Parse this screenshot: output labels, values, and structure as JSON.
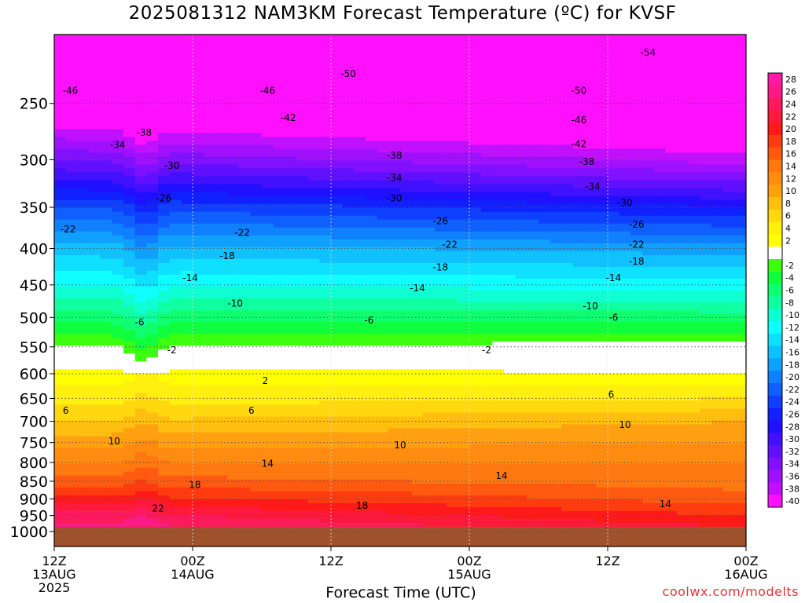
{
  "title": "2025081312 NAM3KM Forecast Temperature (ºC) for KVSF",
  "credit": "coolwx.com/modelts",
  "chart_data": {
    "type": "heatmap",
    "title": "2025081312 NAM3KM Forecast Temperature (ºC) for KVSF",
    "xlabel": "Forecast Time (UTC)",
    "ylabel": "",
    "x_range_hours": [
      0,
      60
    ],
    "y_range_hpa": [
      200,
      1050
    ],
    "y_scale": "log-pressure (inverted)",
    "y_ticks": [
      250,
      300,
      350,
      400,
      450,
      500,
      550,
      600,
      650,
      700,
      750,
      800,
      850,
      900,
      950,
      1000
    ],
    "x_ticks": [
      {
        "hour": 0,
        "line1": "12Z",
        "line2": "13AUG",
        "line3": "2025"
      },
      {
        "hour": 12,
        "line1": "00Z",
        "line2": "14AUG",
        "line3": ""
      },
      {
        "hour": 24,
        "line1": "12Z",
        "line2": "",
        "line3": ""
      },
      {
        "hour": 36,
        "line1": "00Z",
        "line2": "15AUG",
        "line3": ""
      },
      {
        "hour": 48,
        "line1": "12Z",
        "line2": "",
        "line3": ""
      },
      {
        "hour": 60,
        "line1": "00Z",
        "line2": "16AUG",
        "line3": ""
      }
    ],
    "grid": true,
    "ground_level_hpa": 985,
    "colorbar": {
      "placement": "right",
      "levels": [
        {
          "label": "28",
          "color": "#ff1aa8"
        },
        {
          "label": "26",
          "color": "#ff1a86"
        },
        {
          "label": "24",
          "color": "#ff1a5e"
        },
        {
          "label": "22",
          "color": "#ff1a3c"
        },
        {
          "label": "20",
          "color": "#ff1a1a"
        },
        {
          "label": "18",
          "color": "#ff3c10"
        },
        {
          "label": "16",
          "color": "#ff5a10"
        },
        {
          "label": "14",
          "color": "#ff7810"
        },
        {
          "label": "12",
          "color": "#ff8c10"
        },
        {
          "label": "10",
          "color": "#ffa010"
        },
        {
          "label": "8",
          "color": "#ffbe10"
        },
        {
          "label": "6",
          "color": "#ffd810"
        },
        {
          "label": "4",
          "color": "#fff010"
        },
        {
          "label": "2",
          "color": "#ffff00"
        },
        {
          "label": "",
          "color": "#ffffff"
        },
        {
          "label": "-2",
          "color": "#3cff10"
        },
        {
          "label": "-4",
          "color": "#10ff3c"
        },
        {
          "label": "-6",
          "color": "#10ff6e"
        },
        {
          "label": "-8",
          "color": "#10ffa0"
        },
        {
          "label": "-10",
          "color": "#10ffd2"
        },
        {
          "label": "-12",
          "color": "#10ffff"
        },
        {
          "label": "-14",
          "color": "#10e0ff"
        },
        {
          "label": "-16",
          "color": "#10c0ff"
        },
        {
          "label": "-18",
          "color": "#10a0ff"
        },
        {
          "label": "-20",
          "color": "#1080ff"
        },
        {
          "label": "-22",
          "color": "#1060ff"
        },
        {
          "label": "-24",
          "color": "#1040ff"
        },
        {
          "label": "-26",
          "color": "#1020ff"
        },
        {
          "label": "-28",
          "color": "#2010ff"
        },
        {
          "label": "-30",
          "color": "#4010ff"
        },
        {
          "label": "-32",
          "color": "#6010ff"
        },
        {
          "label": "-34",
          "color": "#8010ff"
        },
        {
          "label": "-36",
          "color": "#a010ff"
        },
        {
          "label": "-38",
          "color": "#c010ff"
        },
        {
          "label": "-40",
          "color": "#ff10ff"
        }
      ]
    },
    "profile": {
      "levels_hpa": [
        200,
        250,
        300,
        350,
        400,
        450,
        500,
        550,
        600,
        650,
        700,
        750,
        800,
        850,
        900,
        950,
        985
      ],
      "temp_c_hour0": [
        -52,
        -44,
        -34,
        -24,
        -17,
        -12,
        -7,
        -2,
        3,
        5,
        8,
        11,
        14,
        17,
        21,
        25,
        27
      ],
      "temp_c_hour60": [
        -55,
        -48,
        -39,
        -28,
        -19,
        -13,
        -7,
        -1,
        2,
        6,
        10,
        12,
        14,
        15,
        17,
        20,
        22
      ]
    },
    "contour_labels": [
      {
        "text": "-54",
        "hour": 51.5,
        "hpa": 212
      },
      {
        "text": "-50",
        "hour": 25.5,
        "hpa": 227
      },
      {
        "text": "-50",
        "hour": 45.5,
        "hpa": 240
      },
      {
        "text": "-46",
        "hour": 1.4,
        "hpa": 240
      },
      {
        "text": "-46",
        "hour": 18.5,
        "hpa": 240
      },
      {
        "text": "-46",
        "hour": 45.5,
        "hpa": 264
      },
      {
        "text": "-42",
        "hour": 20.3,
        "hpa": 262
      },
      {
        "text": "-42",
        "hour": 45.5,
        "hpa": 285
      },
      {
        "text": "-38",
        "hour": 7.8,
        "hpa": 275
      },
      {
        "text": "-38",
        "hour": 29.5,
        "hpa": 296
      },
      {
        "text": "-38",
        "hour": 46.2,
        "hpa": 302
      },
      {
        "text": "-34",
        "hour": 5.5,
        "hpa": 286
      },
      {
        "text": "-34",
        "hour": 29.5,
        "hpa": 318
      },
      {
        "text": "-34",
        "hour": 46.7,
        "hpa": 327
      },
      {
        "text": "-30",
        "hour": 10.2,
        "hpa": 306
      },
      {
        "text": "-30",
        "hour": 29.5,
        "hpa": 340
      },
      {
        "text": "-30",
        "hour": 49.5,
        "hpa": 345
      },
      {
        "text": "-26",
        "hour": 9.5,
        "hpa": 340
      },
      {
        "text": "-26",
        "hour": 33.5,
        "hpa": 366
      },
      {
        "text": "-26",
        "hour": 50.5,
        "hpa": 370
      },
      {
        "text": "-22",
        "hour": 1.2,
        "hpa": 376
      },
      {
        "text": "-22",
        "hour": 16.3,
        "hpa": 380
      },
      {
        "text": "-22",
        "hour": 34.3,
        "hpa": 395
      },
      {
        "text": "-22",
        "hour": 50.5,
        "hpa": 395
      },
      {
        "text": "-18",
        "hour": 15,
        "hpa": 410
      },
      {
        "text": "-18",
        "hour": 33.5,
        "hpa": 425
      },
      {
        "text": "-18",
        "hour": 50.5,
        "hpa": 417
      },
      {
        "text": "-14",
        "hour": 11.8,
        "hpa": 440
      },
      {
        "text": "-14",
        "hour": 31.5,
        "hpa": 455
      },
      {
        "text": "-14",
        "hour": 48.5,
        "hpa": 440
      },
      {
        "text": "-10",
        "hour": 15.7,
        "hpa": 478
      },
      {
        "text": "-10",
        "hour": 46.5,
        "hpa": 482
      },
      {
        "text": "-6",
        "hour": 7.4,
        "hpa": 508
      },
      {
        "text": "-6",
        "hour": 27.3,
        "hpa": 505
      },
      {
        "text": "-6",
        "hour": 48.5,
        "hpa": 500
      },
      {
        "text": "-2",
        "hour": 10.2,
        "hpa": 556
      },
      {
        "text": "-2",
        "hour": 37.5,
        "hpa": 556
      },
      {
        "text": "2",
        "hour": 18.3,
        "hpa": 614
      },
      {
        "text": "6",
        "hour": 1.0,
        "hpa": 676
      },
      {
        "text": "6",
        "hour": 17.1,
        "hpa": 676
      },
      {
        "text": "6",
        "hour": 48.3,
        "hpa": 642
      },
      {
        "text": "10",
        "hour": 5.2,
        "hpa": 747
      },
      {
        "text": "10",
        "hour": 30.0,
        "hpa": 756
      },
      {
        "text": "10",
        "hour": 49.5,
        "hpa": 708
      },
      {
        "text": "14",
        "hour": 18.5,
        "hpa": 803
      },
      {
        "text": "14",
        "hour": 38.8,
        "hpa": 835
      },
      {
        "text": "14",
        "hour": 53.0,
        "hpa": 915
      },
      {
        "text": "18",
        "hour": 12.2,
        "hpa": 860
      },
      {
        "text": "18",
        "hour": 26.7,
        "hpa": 920
      },
      {
        "text": "22",
        "hour": 9.0,
        "hpa": 928
      }
    ]
  }
}
